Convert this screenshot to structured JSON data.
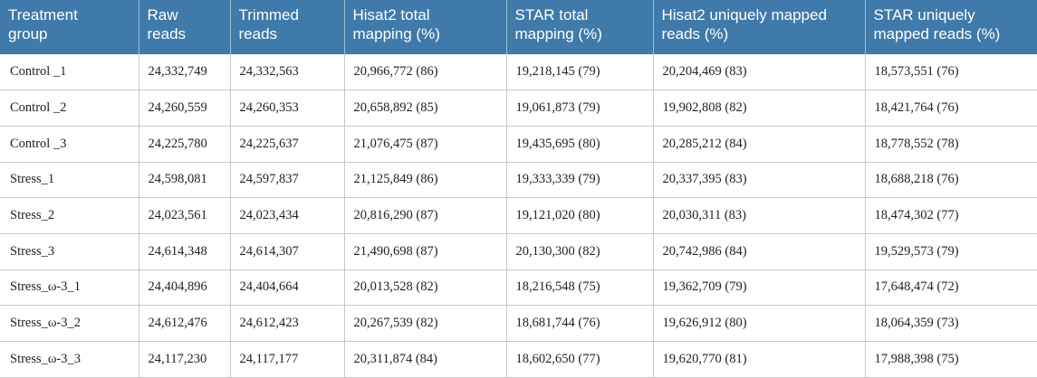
{
  "table": {
    "headers": [
      "Treatment\ngroup",
      "Raw\nreads",
      "Trimmed\nreads",
      "Hisat2 total\nmapping (%)",
      "STAR total\nmapping (%)",
      "Hisat2 uniquely mapped\nreads (%)",
      "STAR uniquely\nmapped reads (%)"
    ],
    "rows": [
      [
        "Control _1",
        "24,332,749",
        "24,332,563",
        "20,966,772 (86)",
        "19,218,145 (79)",
        "20,204,469 (83)",
        "18,573,551 (76)"
      ],
      [
        "Control _2",
        "24,260,559",
        "24,260,353",
        "20,658,892 (85)",
        "19,061,873 (79)",
        "19,902,808 (82)",
        "18,421,764 (76)"
      ],
      [
        "Control _3",
        "24,225,780",
        "24,225,637",
        "21,076,475 (87)",
        "19,435,695 (80)",
        "20,285,212 (84)",
        "18,778,552 (78)"
      ],
      [
        "Stress_1",
        "24,598,081",
        "24,597,837",
        "21,125,849 (86)",
        "19,333,339 (79)",
        "20,337,395 (83)",
        "18,688,218 (76)"
      ],
      [
        "Stress_2",
        "24,023,561",
        "24,023,434",
        "20,816,290 (87)",
        "19,121,020 (80)",
        "20,030,311 (83)",
        "18,474,302 (77)"
      ],
      [
        "Stress_3",
        "24,614,348",
        "24,614,307",
        "21,490,698 (87)",
        "20,130,300 (82)",
        "20,742,986 (84)",
        "19,529,573 (79)"
      ],
      [
        "Stress_ω-3_1",
        "24,404,896",
        "24,404,664",
        "20,013,528 (82)",
        "18,216,548 (75)",
        "19,362,709 (79)",
        "17,648,474 (72)"
      ],
      [
        "Stress_ω-3_2",
        "24,612,476",
        "24,612,423",
        "20,267,539 (82)",
        "18,681,744 (76)",
        "19,626,912 (80)",
        "18,064,359 (73)"
      ],
      [
        "Stress_ω-3_3",
        "24,117,230",
        "24,117,177",
        "20,311,874 (84)",
        "18,602,650 (77)",
        "19,620,770 (81)",
        "17,988,398 (75)"
      ]
    ]
  }
}
